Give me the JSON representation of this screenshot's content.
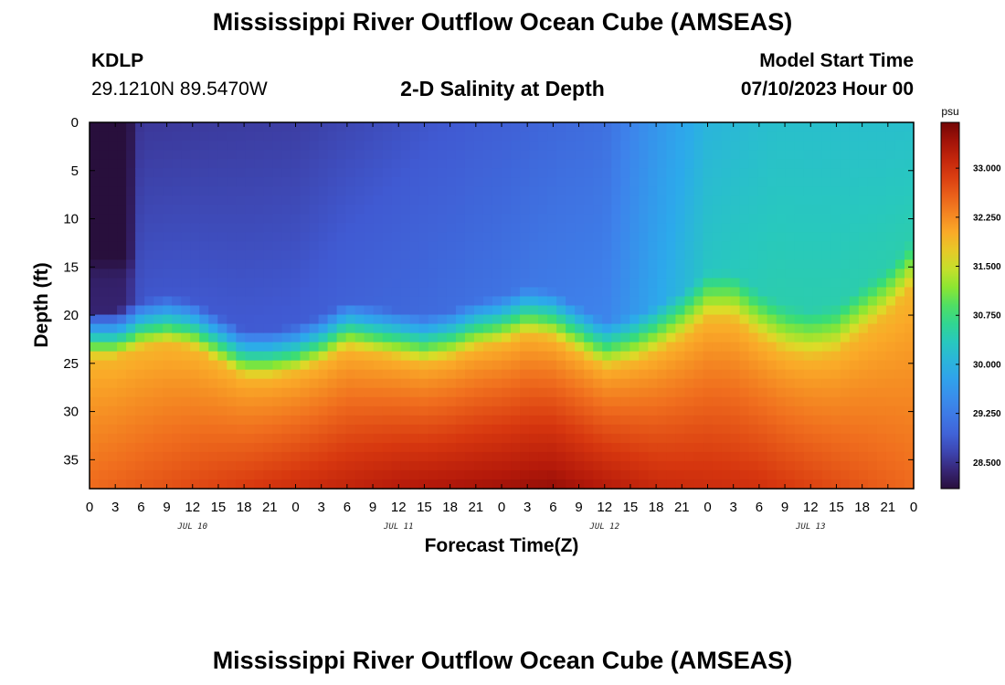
{
  "header": {
    "title": "Mississippi River Outflow Ocean Cube (AMSEAS)",
    "station_id": "KDLP",
    "station_coords": "29.1210N  89.5470W",
    "subtitle": "2-D Salinity at Depth",
    "model_start_label": "Model Start Time",
    "model_start_value": "07/10/2023 Hour 00"
  },
  "footer": {
    "title": "Mississippi River Outflow Ocean Cube (AMSEAS)"
  },
  "chart_data": {
    "type": "heatmap",
    "variable": "Salinity",
    "xlabel": "Forecast Time(Z)",
    "ylabel": "Depth (ft)",
    "x_range_hours": [
      0,
      96
    ],
    "x_tick_labels": [
      "0",
      "3",
      "6",
      "9",
      "12",
      "15",
      "18",
      "21",
      "0",
      "3",
      "6",
      "9",
      "12",
      "15",
      "18",
      "21",
      "0",
      "3",
      "6",
      "9",
      "12",
      "15",
      "18",
      "21",
      "0",
      "3",
      "6",
      "9",
      "12",
      "15",
      "18",
      "21",
      "0"
    ],
    "day_labels": [
      "JUL 10",
      "JUL 11",
      "JUL 12",
      "JUL 13"
    ],
    "y_range": [
      0,
      38
    ],
    "y_ticks": [
      0,
      5,
      10,
      15,
      20,
      25,
      30,
      35
    ],
    "y_inverted": true,
    "colorbar": {
      "unit": "psu",
      "range": [
        28.1,
        33.7
      ],
      "ticks": [
        28.5,
        29.25,
        30.0,
        30.75,
        31.5,
        32.25,
        33.0
      ],
      "tick_labels": [
        "28.500",
        "29.250",
        "30.000",
        "30.750",
        "31.500",
        "32.250",
        "33.000"
      ]
    },
    "surface_salinity": [
      [
        0,
        28.1
      ],
      [
        4,
        28.1
      ],
      [
        6,
        28.55
      ],
      [
        24,
        28.6
      ],
      [
        48,
        28.9
      ],
      [
        60,
        29.1
      ],
      [
        66,
        29.6
      ],
      [
        72,
        30.05
      ],
      [
        80,
        30.2
      ],
      [
        96,
        30.2
      ]
    ],
    "halocline_depth_ft": [
      [
        0,
        23.5
      ],
      [
        3,
        23.5
      ],
      [
        6,
        22.5
      ],
      [
        9,
        22.0
      ],
      [
        12,
        22.5
      ],
      [
        15,
        24.0
      ],
      [
        18,
        25.5
      ],
      [
        21,
        25.5
      ],
      [
        24,
        25.0
      ],
      [
        27,
        24.0
      ],
      [
        30,
        22.5
      ],
      [
        33,
        23.0
      ],
      [
        36,
        23.5
      ],
      [
        39,
        24.0
      ],
      [
        42,
        23.5
      ],
      [
        45,
        22.5
      ],
      [
        48,
        22.0
      ],
      [
        51,
        21.0
      ],
      [
        54,
        21.5
      ],
      [
        57,
        23.0
      ],
      [
        60,
        24.5
      ],
      [
        63,
        24.0
      ],
      [
        66,
        23.0
      ],
      [
        69,
        21.5
      ],
      [
        72,
        19.5
      ],
      [
        75,
        19.5
      ],
      [
        78,
        21.5
      ],
      [
        81,
        23.0
      ],
      [
        84,
        23.5
      ],
      [
        87,
        23.0
      ],
      [
        90,
        21.0
      ],
      [
        93,
        19.0
      ],
      [
        96,
        16.0
      ]
    ],
    "bottom_salinity": [
      [
        0,
        32.5
      ],
      [
        18,
        32.9
      ],
      [
        36,
        33.3
      ],
      [
        54,
        33.5
      ],
      [
        66,
        33.1
      ],
      [
        78,
        33.0
      ],
      [
        96,
        32.5
      ]
    ],
    "fresh_pocket": {
      "x_hours": [
        0,
        4
      ],
      "depth_ft": [
        0,
        16
      ],
      "salinity": 28.1
    }
  }
}
